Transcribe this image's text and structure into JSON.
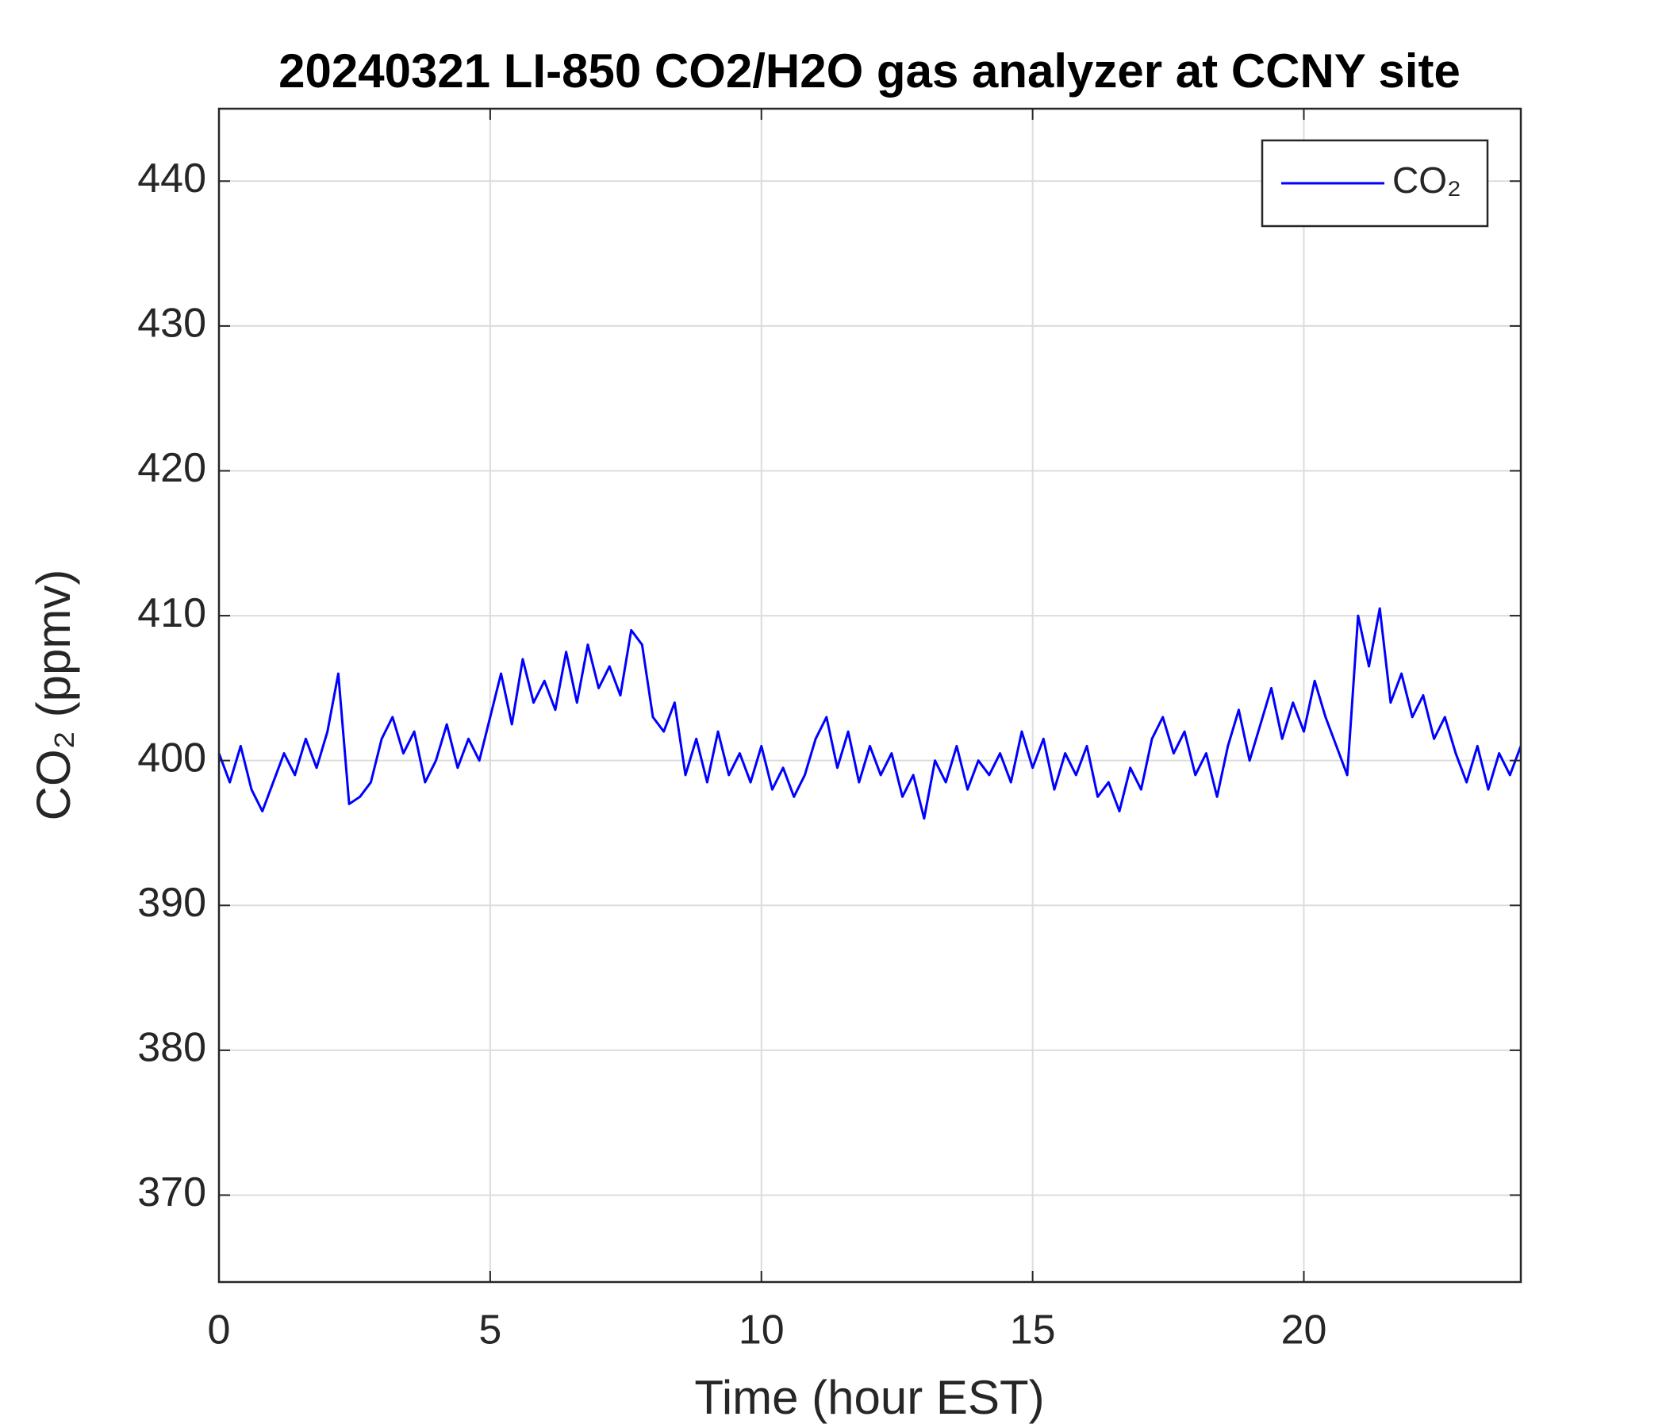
{
  "chart_data": {
    "type": "line",
    "title": "20240321 LI-850 CO2/H2O gas analyzer at CCNY site",
    "xlabel": "Time (hour EST)",
    "ylabel": "CO₂ (ppmv)",
    "x": [
      0,
      0.2,
      0.4,
      0.6,
      0.8,
      1,
      1.2,
      1.4,
      1.6,
      1.8,
      2,
      2.2,
      2.4,
      2.6,
      2.8,
      3,
      3.2,
      3.4,
      3.6,
      3.8,
      4,
      4.2,
      4.4,
      4.6,
      4.8,
      5,
      5.2,
      5.4,
      5.6,
      5.8,
      6,
      6.2,
      6.4,
      6.6,
      6.8,
      7,
      7.2,
      7.4,
      7.6,
      7.8,
      8,
      8.2,
      8.4,
      8.6,
      8.8,
      9,
      9.2,
      9.4,
      9.6,
      9.8,
      10,
      10.2,
      10.4,
      10.6,
      10.8,
      11,
      11.2,
      11.4,
      11.6,
      11.8,
      12,
      12.2,
      12.4,
      12.6,
      12.8,
      13,
      13.2,
      13.4,
      13.6,
      13.8,
      14,
      14.2,
      14.4,
      14.6,
      14.8,
      15,
      15.2,
      15.4,
      15.6,
      15.8,
      16,
      16.2,
      16.4,
      16.6,
      16.8,
      17,
      17.2,
      17.4,
      17.6,
      17.8,
      18,
      18.2,
      18.4,
      18.6,
      18.8,
      19,
      19.2,
      19.4,
      19.6,
      19.8,
      20,
      20.2,
      20.4,
      20.6,
      20.8,
      21,
      21.2,
      21.4,
      21.6,
      21.8,
      22,
      22.2,
      22.4,
      22.6,
      22.8,
      23,
      23.2,
      23.4,
      23.6,
      23.8,
      24
    ],
    "series": [
      {
        "name": "CO₂",
        "color": "#0000ff",
        "values": [
          400.5,
          398.5,
          401,
          398,
          396.5,
          398.5,
          400.5,
          399,
          401.5,
          399.5,
          402,
          406,
          397,
          397.5,
          398.5,
          401.5,
          403,
          400.5,
          402,
          398.5,
          400,
          402.5,
          399.5,
          401.5,
          400,
          403,
          406,
          402.5,
          407,
          404,
          405.5,
          403.5,
          407.5,
          404,
          408,
          405,
          406.5,
          404.5,
          409,
          408,
          403,
          402,
          404,
          399,
          401.5,
          398.5,
          402,
          399,
          400.5,
          398.5,
          401,
          398,
          399.5,
          397.5,
          399,
          401.5,
          403,
          399.5,
          402,
          398.5,
          401,
          399,
          400.5,
          397.5,
          399,
          396,
          400,
          398.5,
          401,
          398,
          400,
          399,
          400.5,
          398.5,
          402,
          399.5,
          401.5,
          398,
          400.5,
          399,
          401,
          397.5,
          398.5,
          396.5,
          399.5,
          398,
          401.5,
          403,
          400.5,
          402,
          399,
          400.5,
          397.5,
          401,
          403.5,
          400,
          402.5,
          405,
          401.5,
          404,
          402,
          405.5,
          403,
          401,
          399,
          410,
          406.5,
          410.5,
          404,
          406,
          403,
          404.5,
          401.5,
          403,
          400.5,
          398.5,
          401,
          398,
          400.5,
          399,
          401
        ]
      }
    ],
    "xlim": [
      0,
      24
    ],
    "xticks": [
      0,
      5,
      10,
      15,
      20
    ],
    "ylim": [
      364,
      445
    ],
    "yticks": [
      370,
      380,
      390,
      400,
      410,
      420,
      430,
      440
    ],
    "grid": true,
    "legend": "upper right"
  }
}
